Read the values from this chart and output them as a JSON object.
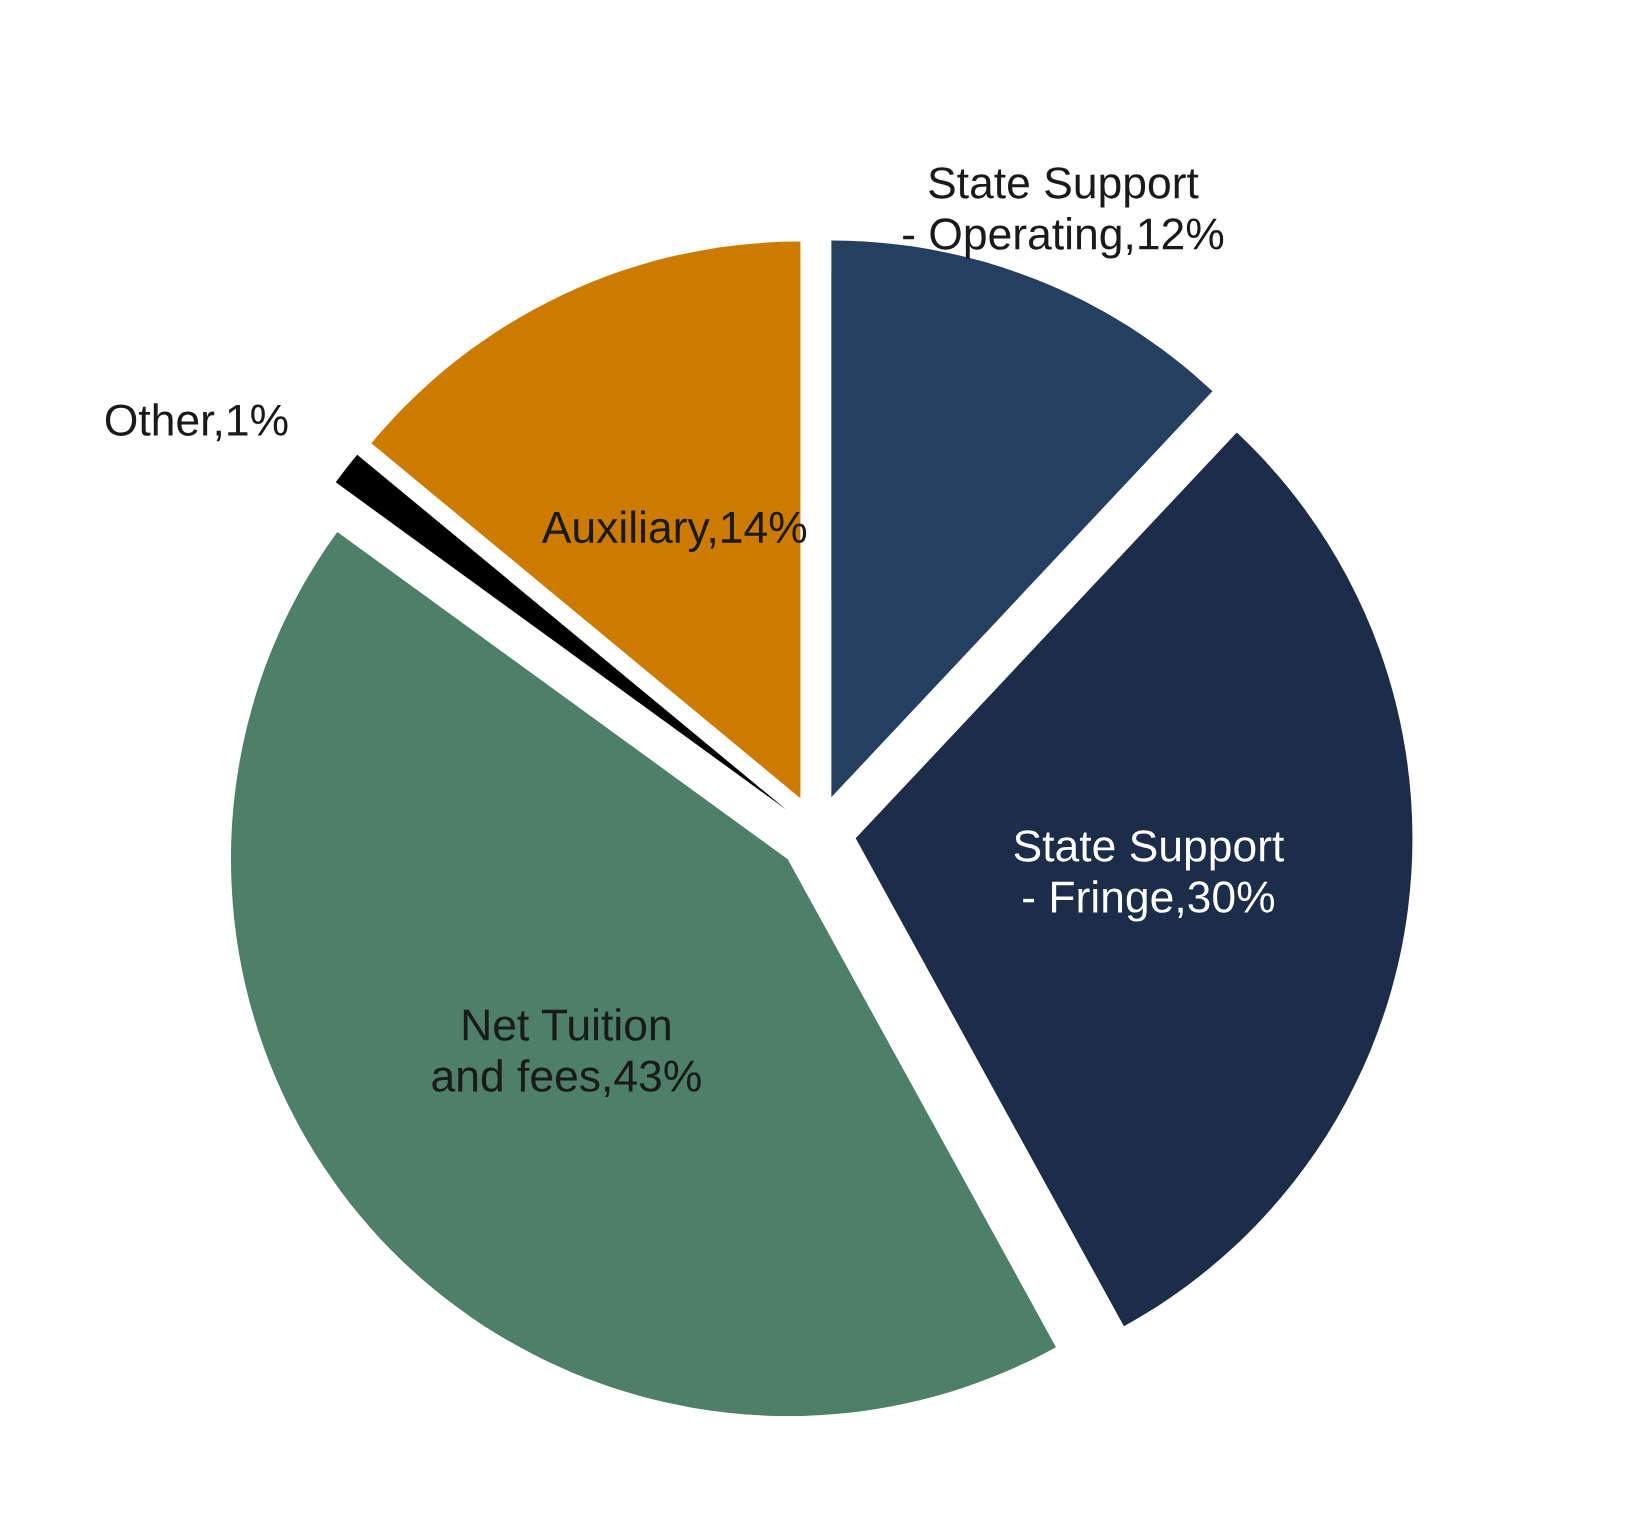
{
  "chart_data": {
    "type": "pie",
    "categories": [
      "State Support - Operating",
      "State Support - Fringe",
      "Net Tuition and fees",
      "Other",
      "Auxiliary"
    ],
    "values": [
      12,
      30,
      43,
      1,
      14
    ],
    "value_labels": [
      "12%",
      "30%",
      "43%",
      "1%",
      "14%"
    ],
    "colors": [
      "#243f60",
      "#1c2d4a",
      "#4e7f68",
      "#000000",
      "#cc7a00"
    ],
    "legend": false
  }
}
